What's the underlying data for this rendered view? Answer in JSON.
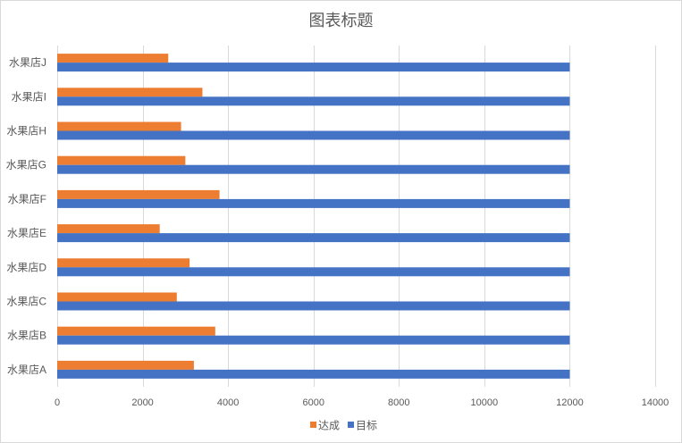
{
  "chart_data": {
    "type": "bar",
    "orientation": "horizontal",
    "title": "图表标题",
    "categories": [
      "水果店A",
      "水果店B",
      "水果店C",
      "水果店D",
      "水果店E",
      "水果店F",
      "水果店G",
      "水果店H",
      "水果店I",
      "水果店J"
    ],
    "series": [
      {
        "name": "达成",
        "color": "#ED7D31",
        "values": [
          3200,
          3700,
          2800,
          3100,
          2400,
          3800,
          3000,
          2900,
          3400,
          2600
        ]
      },
      {
        "name": "目标",
        "color": "#4472C4",
        "values": [
          12000,
          12000,
          12000,
          12000,
          12000,
          12000,
          12000,
          12000,
          12000,
          12000
        ]
      }
    ],
    "xlim": [
      0,
      14000
    ],
    "xticks": [
      0,
      2000,
      4000,
      6000,
      8000,
      10000,
      12000,
      14000
    ],
    "grid": "vertical",
    "legend": "bottom"
  }
}
